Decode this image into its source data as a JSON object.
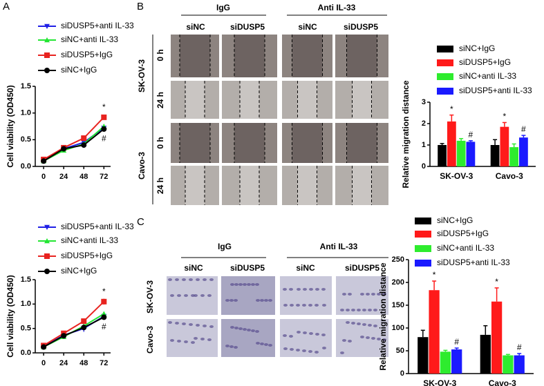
{
  "figure": {
    "panel_labels": [
      "A",
      "B",
      "C"
    ],
    "wound_assay": {
      "groups": [
        "IgG",
        "Anti IL-33"
      ],
      "conditions": [
        "siNC",
        "siDUSP5",
        "siNC",
        "siDUSP5"
      ],
      "cell_lines": [
        "SK-OV-3",
        "Cavo-3"
      ],
      "times": [
        "0 h",
        "24 h",
        "0 h",
        "24 h"
      ]
    },
    "transwell_assay": {
      "groups": [
        "IgG",
        "Anti IL-33"
      ],
      "conditions": [
        "siNC",
        "siDUSP5",
        "siNC",
        "siDUSP5"
      ],
      "cell_lines": [
        "SK-OV-3",
        "Cavo-3"
      ]
    }
  },
  "chart_data": [
    {
      "type": "line",
      "y_label": "Cell viability (OD450)",
      "x": [
        0,
        24,
        48,
        72
      ],
      "xlim": [
        -10,
        80
      ],
      "xticks": [
        0,
        24,
        48,
        72
      ],
      "ylim": [
        0,
        1.5
      ],
      "yticks": [
        {
          "value": 0,
          "label": "0.0"
        },
        0.5,
        {
          "value": 1,
          "label": "1.0"
        },
        1.5
      ],
      "series": [
        {
          "name": "siDUSP5+anti IL-33",
          "color": "#1f1fe6",
          "marker": "triangle-down",
          "values": [
            0.12,
            0.33,
            0.45,
            0.72
          ],
          "errors": [
            0.02,
            0.02,
            0.04,
            0.04
          ]
        },
        {
          "name": "siNC+anti IL-33",
          "color": "#22e632",
          "marker": "triangle-up",
          "values": [
            0.1,
            0.3,
            0.42,
            0.75
          ],
          "errors": [
            0.02,
            0.02,
            0.04,
            0.04
          ]
        },
        {
          "name": "siDUSP5+IgG",
          "color": "#e8231f",
          "marker": "square",
          "values": [
            0.13,
            0.35,
            0.53,
            0.92
          ],
          "errors": [
            0.02,
            0.02,
            0.03,
            0.04
          ]
        },
        {
          "name": "siNC+IgG",
          "color": "#000000",
          "marker": "circle",
          "values": [
            0.1,
            0.33,
            0.4,
            0.7
          ],
          "errors": [
            0.02,
            0.02,
            0.04,
            0.04
          ]
        }
      ],
      "annotations": [
        {
          "text": "*",
          "color": "#e8231f"
        },
        {
          "text": "#",
          "color": "#1f3fae"
        }
      ]
    },
    {
      "type": "line",
      "y_label": "Cell viability (OD450)",
      "x": [
        0,
        24,
        48,
        72
      ],
      "xlim": [
        -10,
        80
      ],
      "xticks": [
        0,
        24,
        48,
        72
      ],
      "ylim": [
        0,
        1.5
      ],
      "yticks": [
        {
          "value": 0,
          "label": "0.0"
        },
        0.5,
        {
          "value": 1,
          "label": "1.0"
        },
        1.5
      ],
      "series": [
        {
          "name": "siDUSP5+anti IL-33",
          "color": "#1f1fe6",
          "marker": "triangle-down",
          "values": [
            0.13,
            0.36,
            0.5,
            0.75
          ],
          "errors": [
            0.02,
            0.02,
            0.07,
            0.05
          ]
        },
        {
          "name": "siNC+anti IL-33",
          "color": "#22e632",
          "marker": "triangle-up",
          "values": [
            0.12,
            0.33,
            0.55,
            0.8
          ],
          "errors": [
            0.02,
            0.02,
            0.04,
            0.04
          ]
        },
        {
          "name": "siDUSP5+IgG",
          "color": "#e8231f",
          "marker": "square",
          "values": [
            0.15,
            0.4,
            0.65,
            1.05
          ],
          "errors": [
            0.02,
            0.02,
            0.03,
            0.06
          ]
        },
        {
          "name": "siNC+IgG",
          "color": "#000000",
          "marker": "circle",
          "values": [
            0.12,
            0.35,
            0.52,
            0.73
          ],
          "errors": [
            0.02,
            0.02,
            0.04,
            0.04
          ]
        }
      ],
      "annotations": [
        {
          "text": "*",
          "color": "#e8231f"
        },
        {
          "text": "#",
          "color": "#1f3fae"
        }
      ]
    },
    {
      "type": "bar",
      "y_label": "Relative migration distance",
      "categories": [
        "SK-OV-3",
        "Cavo-3"
      ],
      "ylim": [
        0,
        3
      ],
      "yticks": [
        0,
        1,
        2,
        3
      ],
      "series": [
        {
          "name": "siNC+IgG",
          "color": "#000000",
          "values": [
            1.0,
            1.0
          ],
          "errors": [
            0.07,
            0.25
          ]
        },
        {
          "name": "siDUSP5+IgG",
          "color": "#ff1a1a",
          "values": [
            2.1,
            1.85
          ],
          "errors": [
            0.3,
            0.2
          ]
        },
        {
          "name": "siNC+anti IL-33",
          "color": "#2eec2e",
          "values": [
            1.2,
            0.9
          ],
          "errors": [
            0.1,
            0.15
          ]
        },
        {
          "name": "siDUSP5+anti IL-33",
          "color": "#1a1aff",
          "values": [
            1.15,
            1.35
          ],
          "errors": [
            0.05,
            0.1
          ]
        }
      ],
      "annotations": [
        {
          "text": "*",
          "color": "#e8231f"
        },
        {
          "text": "#",
          "color": "#1f3fae"
        },
        {
          "text": "*",
          "color": "#e8231f"
        },
        {
          "text": "#",
          "color": "#1f3fae"
        }
      ]
    },
    {
      "type": "bar",
      "y_label": "Relative migration distance",
      "categories": [
        "SK-OV-3",
        "Cavo-3"
      ],
      "ylim": [
        0,
        250
      ],
      "yticks": [
        0,
        50,
        100,
        150,
        200,
        250
      ],
      "series": [
        {
          "name": "siNC+IgG",
          "color": "#000000",
          "values": [
            80,
            85
          ],
          "errors": [
            15,
            20
          ]
        },
        {
          "name": "siDUSP5+IgG",
          "color": "#ff1a1a",
          "values": [
            183,
            158
          ],
          "errors": [
            20,
            30
          ]
        },
        {
          "name": "siNC+anti IL-33",
          "color": "#2eec2e",
          "values": [
            48,
            40
          ],
          "errors": [
            3,
            2
          ]
        },
        {
          "name": "siDUSP5+anti IL-33",
          "color": "#1a1aff",
          "values": [
            53,
            40
          ],
          "errors": [
            3,
            4
          ]
        }
      ],
      "annotations": [
        {
          "text": "*",
          "color": "#e8231f"
        },
        {
          "text": "#",
          "color": "#1f3fae"
        },
        {
          "text": "*",
          "color": "#e8231f"
        },
        {
          "text": "#",
          "color": "#1f3fae"
        }
      ]
    }
  ]
}
